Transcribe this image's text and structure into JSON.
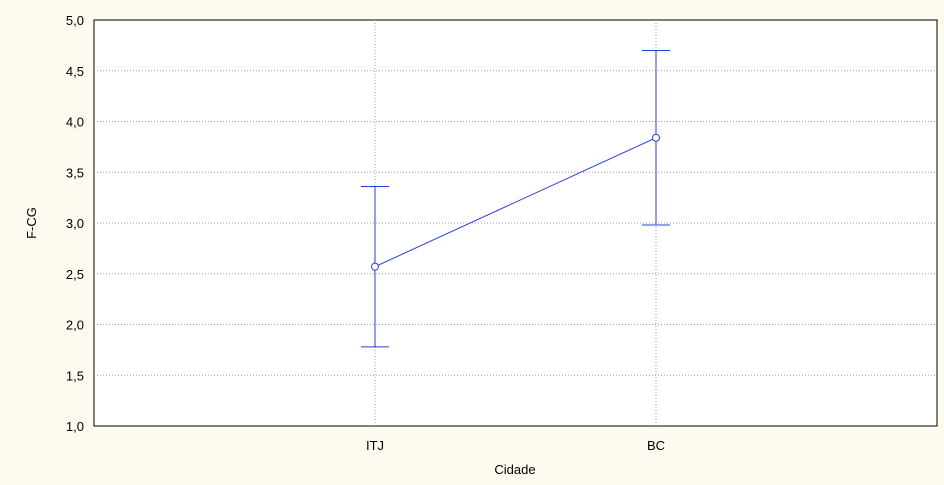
{
  "chart_data": {
    "type": "line",
    "categories": [
      "ITJ",
      "BC"
    ],
    "series": [
      {
        "values": [
          2.57,
          3.84
        ],
        "error_lower": [
          1.78,
          2.98
        ],
        "error_upper": [
          3.36,
          4.7
        ],
        "color": "#2a3fdc"
      }
    ],
    "xlabel": "Cidade",
    "ylabel": "F-CG",
    "ylim": [
      1.0,
      5.0
    ],
    "yticks": [
      "1,0",
      "1,5",
      "2,0",
      "2,5",
      "3,0",
      "3,5",
      "4,0",
      "4,5",
      "5,0"
    ],
    "grid": true,
    "error_bars": true
  }
}
